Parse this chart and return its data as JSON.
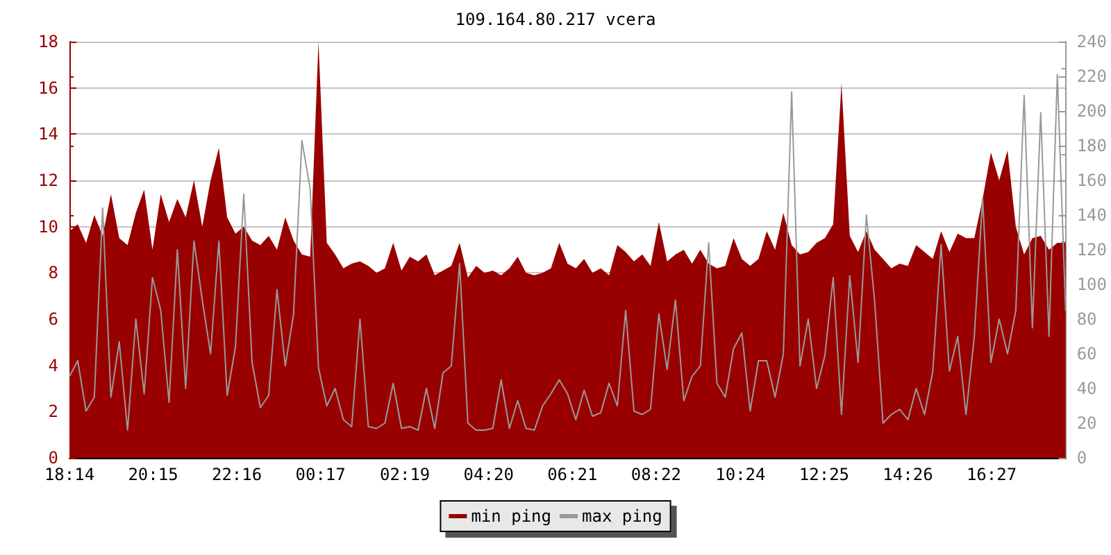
{
  "chart_data": {
    "type": "area",
    "title": "109.164.80.217 vcera",
    "x": [
      "--01-01T18:14",
      "--01-01T18:26",
      "--01-01T18:38",
      "--01-01T18:50",
      "--01-01T19:02",
      "--01-01T19:14",
      "--01-01T19:26",
      "--01-01T19:38",
      "--01-01T19:50",
      "--01-01T20:02",
      "--01-01T20:14",
      "--01-01T20:26",
      "--01-01T20:38",
      "--01-01T20:50",
      "--01-01T21:02",
      "--01-01T21:14",
      "--01-01T21:26",
      "--01-01T21:38",
      "--01-01T21:50",
      "--01-01T22:02",
      "--01-01T22:14",
      "--01-01T22:26",
      "--01-01T22:38",
      "--01-01T22:50",
      "--01-01T23:02",
      "--01-01T23:14",
      "--01-01T23:26",
      "--01-01T23:38",
      "--01-01T23:50",
      "--01-02T00:02",
      "--01-02T00:14",
      "--01-02T00:26",
      "--01-02T00:38",
      "--01-02T00:50",
      "--01-02T01:02",
      "--01-02T01:14",
      "--01-02T01:26",
      "--01-02T01:38",
      "--01-02T01:50",
      "--01-02T02:02",
      "--01-02T02:14",
      "--01-02T02:26",
      "--01-02T02:38",
      "--01-02T02:50",
      "--01-02T03:02",
      "--01-02T03:14",
      "--01-02T03:26",
      "--01-02T03:38",
      "--01-02T03:50",
      "--01-02T04:02",
      "--01-02T04:14",
      "--01-02T04:26",
      "--01-02T04:38",
      "--01-02T04:50",
      "--01-02T05:02",
      "--01-02T05:14",
      "--01-02T05:26",
      "--01-02T05:38",
      "--01-02T05:50",
      "--01-02T06:02",
      "--01-02T06:14",
      "--01-02T06:26",
      "--01-02T06:38",
      "--01-02T06:50",
      "--01-02T07:02",
      "--01-02T07:14",
      "--01-02T07:26",
      "--01-02T07:38",
      "--01-02T07:50",
      "--01-02T08:02",
      "--01-02T08:14",
      "--01-02T08:26",
      "--01-02T08:38",
      "--01-02T08:50",
      "--01-02T09:02",
      "--01-02T09:14",
      "--01-02T09:26",
      "--01-02T09:38",
      "--01-02T09:50",
      "--01-02T10:02",
      "--01-02T10:14",
      "--01-02T10:26",
      "--01-02T10:38",
      "--01-02T10:50",
      "--01-02T11:02",
      "--01-02T11:14",
      "--01-02T11:26",
      "--01-02T11:38",
      "--01-02T11:50",
      "--01-02T12:02",
      "--01-02T12:14",
      "--01-02T12:26",
      "--01-02T12:38",
      "--01-02T12:50",
      "--01-02T13:02",
      "--01-02T13:14",
      "--01-02T13:26",
      "--01-02T13:38",
      "--01-02T13:50",
      "--01-02T14:02",
      "--01-02T14:14",
      "--01-02T14:26",
      "--01-02T14:38",
      "--01-02T14:50",
      "--01-02T15:02",
      "--01-02T15:14",
      "--01-02T15:26",
      "--01-02T15:38",
      "--01-02T15:50",
      "--01-02T16:02",
      "--01-02T16:14",
      "--01-02T16:26",
      "--01-02T16:38",
      "--01-02T16:50",
      "--01-02T17:02",
      "--01-02T17:14",
      "--01-02T17:26",
      "--01-02T17:38",
      "--01-02T17:50",
      "--01-02T18:02",
      "--01-02T18:14"
    ],
    "xlim": [
      "--01-01T18:14",
      "--01-02T18:14"
    ],
    "xticks": [
      {
        "value": "--01-01T18:14",
        "label": "18:14"
      },
      {
        "value": "--01-01T20:15",
        "label": "20:15"
      },
      {
        "value": "--01-01T22:16",
        "label": "22:16"
      },
      {
        "value": "--01-02T00:17",
        "label": "00:17"
      },
      {
        "value": "--01-02T02:19",
        "label": "02:19"
      },
      {
        "value": "--01-02T04:20",
        "label": "04:20"
      },
      {
        "value": "--01-02T06:21",
        "label": "06:21"
      },
      {
        "value": "--01-02T08:22",
        "label": "08:22"
      },
      {
        "value": "--01-02T10:24",
        "label": "10:24"
      },
      {
        "value": "--01-02T12:25",
        "label": "12:25"
      },
      {
        "value": "--01-02T14:26",
        "label": "14:26"
      },
      {
        "value": "--01-02T16:27",
        "label": "16:27"
      }
    ],
    "ylim": [
      0,
      18
    ],
    "yticks": [
      0,
      2,
      4,
      6,
      8,
      10,
      12,
      14,
      16,
      18
    ],
    "y2lim": [
      0,
      240
    ],
    "y2ticks": [
      0,
      20,
      40,
      60,
      80,
      100,
      120,
      140,
      160,
      180,
      200,
      220,
      240
    ],
    "grid": "y",
    "legend": "bottom",
    "series": [
      {
        "name": "min ping",
        "color": "#990000",
        "values": [
          9.8,
          10.1,
          9.3,
          10.5,
          9.6,
          11.4,
          9.5,
          9.2,
          10.6,
          11.6,
          9.0,
          11.4,
          10.2,
          11.2,
          10.4,
          12.0,
          10.0,
          12.0,
          13.4,
          10.4,
          9.7,
          10.0,
          9.4,
          9.2,
          9.6,
          9.0,
          10.4,
          9.4,
          8.8,
          8.7,
          18.0,
          9.3,
          8.8,
          8.2,
          8.4,
          8.5,
          8.3,
          8.0,
          8.2,
          9.3,
          8.1,
          8.7,
          8.5,
          8.8,
          7.9,
          8.1,
          8.3,
          9.3,
          7.8,
          8.3,
          8.0,
          8.1,
          7.9,
          8.2,
          8.7,
          8.0,
          7.9,
          8.0,
          8.2,
          9.3,
          8.4,
          8.2,
          8.6,
          8.0,
          8.2,
          7.9,
          9.2,
          8.9,
          8.5,
          8.8,
          8.3,
          10.2,
          8.5,
          8.8,
          9.0,
          8.4,
          9.0,
          8.4,
          8.2,
          8.3,
          9.5,
          8.6,
          8.3,
          8.6,
          9.8,
          9.0,
          10.6,
          9.2,
          8.8,
          8.9,
          9.3,
          9.5,
          10.1,
          16.2,
          9.6,
          8.9,
          9.8,
          9.0,
          8.6,
          8.2,
          8.4,
          8.3,
          9.2,
          8.9,
          8.6,
          9.8,
          8.9,
          9.7,
          9.5,
          9.5,
          11.2,
          13.2,
          12.0,
          13.3,
          10.0,
          8.8,
          9.5,
          9.6,
          9.0,
          9.3,
          9.3
        ]
      },
      {
        "name": "max ping",
        "type": "line",
        "axis": "y2",
        "color": "#999999",
        "values": [
          47,
          56,
          27,
          35,
          144,
          35,
          67,
          16,
          80,
          37,
          104,
          85,
          32,
          120,
          40,
          125,
          91,
          60,
          125,
          36,
          64,
          152,
          55,
          29,
          36,
          97,
          53,
          83,
          183,
          155,
          52,
          30,
          40,
          22,
          18,
          80,
          18,
          17,
          20,
          43,
          17,
          18,
          16,
          40,
          17,
          49,
          53,
          112,
          20,
          16,
          16,
          17,
          45,
          17,
          33,
          17,
          16,
          30,
          37,
          45,
          37,
          22,
          39,
          24,
          26,
          43,
          30,
          85,
          27,
          25,
          28,
          83,
          51,
          91,
          33,
          47,
          53,
          124,
          43,
          35,
          63,
          72,
          27,
          56,
          56,
          35,
          60,
          211,
          53,
          80,
          40,
          59,
          104,
          25,
          105,
          55,
          140,
          90,
          20,
          25,
          28,
          22,
          40,
          25,
          50,
          123,
          50,
          70,
          25,
          70,
          150,
          55,
          80,
          60,
          85,
          209,
          75,
          199,
          70,
          221,
          85
        ]
      }
    ]
  }
}
